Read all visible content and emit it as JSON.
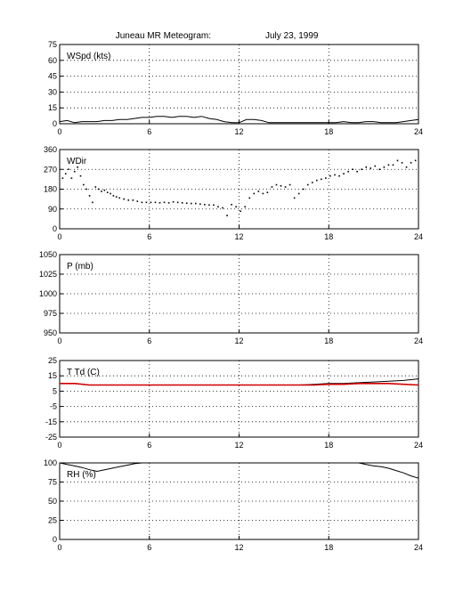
{
  "title": "Juneau MR Meteogram:",
  "date": "July 23, 1999",
  "chart_data": [
    {
      "type": "line",
      "label": "WSpd (kts)",
      "ylim": [
        0,
        75
      ],
      "yticks": [
        0,
        15,
        30,
        45,
        60,
        75
      ],
      "xlim": [
        0,
        24
      ],
      "xticks": [
        0,
        6,
        12,
        18,
        24
      ],
      "grid": true,
      "series": [
        {
          "color": "#000000",
          "x": [
            0,
            0.5,
            1,
            1.5,
            2,
            2.5,
            3,
            3.5,
            4,
            4.5,
            5,
            5.5,
            6,
            6.5,
            7,
            7.5,
            8,
            8.5,
            9,
            9.5,
            10,
            10.5,
            11,
            11.5,
            12,
            12.5,
            13,
            13.5,
            14,
            14.5,
            15,
            15.5,
            16,
            16.5,
            17,
            17.5,
            18,
            18.5,
            19,
            19.5,
            20,
            20.5,
            21,
            21.5,
            22,
            22.5,
            23,
            23.5,
            24
          ],
          "values": [
            2,
            3,
            1,
            2,
            2,
            2,
            3,
            3,
            4,
            4,
            5,
            6,
            6,
            7,
            7,
            6,
            7,
            7,
            6,
            7,
            5,
            4,
            2,
            1,
            1,
            4,
            4,
            3,
            1,
            1,
            1,
            1,
            1,
            1,
            1,
            1,
            1,
            1,
            2,
            1,
            1,
            2,
            2,
            1,
            1,
            1,
            2,
            3,
            4
          ]
        }
      ]
    },
    {
      "type": "scatter",
      "label": "WDir",
      "ylim": [
        0,
        360
      ],
      "yticks": [
        0,
        90,
        180,
        270,
        360
      ],
      "xlim": [
        0,
        24
      ],
      "xticks": [
        0,
        6,
        12,
        18,
        24
      ],
      "grid": true,
      "series": [
        {
          "color": "#000000",
          "x": [
            0.2,
            0.4,
            0.6,
            0.8,
            1.0,
            1.2,
            1.4,
            1.6,
            1.8,
            2.0,
            2.2,
            2.4,
            2.6,
            2.8,
            3.0,
            3.2,
            3.4,
            3.6,
            3.8,
            4.0,
            4.3,
            4.6,
            4.9,
            5.2,
            5.5,
            5.8,
            6.1,
            6.4,
            6.7,
            7.0,
            7.3,
            7.6,
            7.9,
            8.2,
            8.5,
            8.8,
            9.1,
            9.4,
            9.7,
            10.0,
            10.3,
            10.6,
            10.9,
            11.2,
            11.5,
            11.8,
            12.1,
            12.4,
            12.7,
            13.0,
            13.3,
            13.6,
            13.9,
            14.2,
            14.5,
            14.8,
            15.1,
            15.4,
            15.7,
            16.0,
            16.3,
            16.6,
            16.9,
            17.2,
            17.5,
            17.8,
            18.1,
            18.4,
            18.7,
            19.0,
            19.3,
            19.6,
            19.9,
            20.2,
            20.5,
            20.8,
            21.1,
            21.4,
            21.7,
            22.0,
            22.3,
            22.6,
            22.9,
            23.2,
            23.5,
            23.8
          ],
          "values": [
            230,
            250,
            270,
            230,
            260,
            280,
            240,
            200,
            180,
            150,
            120,
            190,
            180,
            170,
            175,
            165,
            160,
            150,
            145,
            140,
            135,
            130,
            130,
            125,
            120,
            120,
            120,
            120,
            118,
            120,
            118,
            122,
            120,
            118,
            116,
            115,
            115,
            112,
            110,
            108,
            108,
            100,
            95,
            60,
            110,
            100,
            80,
            100,
            140,
            160,
            170,
            160,
            165,
            190,
            200,
            195,
            190,
            200,
            140,
            160,
            180,
            200,
            210,
            220,
            225,
            230,
            240,
            245,
            240,
            250,
            260,
            270,
            260,
            270,
            280,
            275,
            285,
            270,
            280,
            290,
            290,
            310,
            300,
            280,
            300,
            310
          ]
        }
      ]
    },
    {
      "type": "line",
      "label": "P (mb)",
      "ylim": [
        950,
        1050
      ],
      "yticks": [
        950,
        975,
        1000,
        1025,
        1050
      ],
      "xlim": [
        0,
        24
      ],
      "xticks": [
        0,
        6,
        12,
        18,
        24
      ],
      "grid": true,
      "series": []
    },
    {
      "type": "line",
      "label": "T Td (C)",
      "ylim": [
        -25,
        25
      ],
      "yticks": [
        -25,
        -15,
        -5,
        5,
        15,
        25
      ],
      "xlim": [
        0,
        24
      ],
      "xticks": [
        0,
        6,
        12,
        18,
        24
      ],
      "grid": true,
      "series": [
        {
          "color": "#000000",
          "x": [
            0,
            1,
            2,
            3,
            4,
            5,
            6,
            7,
            8,
            9,
            10,
            11,
            12,
            13,
            14,
            15,
            16,
            17,
            18,
            19,
            20,
            21,
            22,
            23,
            24
          ],
          "values": [
            10,
            10,
            9,
            9,
            9,
            9,
            9,
            9,
            9,
            9,
            9,
            9,
            9,
            9,
            9,
            9,
            9,
            9.5,
            10,
            10,
            10.5,
            11,
            11.5,
            12,
            13
          ]
        },
        {
          "color": "#d00000",
          "x": [
            0,
            1,
            2,
            3,
            4,
            5,
            6,
            7,
            8,
            9,
            10,
            11,
            12,
            13,
            14,
            15,
            16,
            17,
            18,
            19,
            20,
            21,
            22,
            23,
            24
          ],
          "values": [
            10,
            10,
            9,
            9,
            9,
            9,
            9,
            9,
            9,
            9,
            9,
            9,
            9,
            9,
            9,
            9,
            9,
            9,
            9.5,
            9.5,
            10,
            10,
            10,
            9.5,
            9
          ]
        }
      ]
    },
    {
      "type": "line",
      "label": "RH (%)",
      "ylim": [
        0,
        100
      ],
      "yticks": [
        0,
        25,
        50,
        75,
        100
      ],
      "xlim": [
        0,
        24
      ],
      "xticks": [
        0,
        6,
        12,
        18,
        24
      ],
      "grid": true,
      "series": [
        {
          "color": "#000000",
          "x": [
            0,
            0.5,
            1,
            1.5,
            2,
            2.5,
            3,
            3.5,
            4,
            4.5,
            5,
            5.5,
            6
          ],
          "values": [
            100,
            98,
            96,
            94,
            91,
            89,
            91,
            93,
            95,
            97,
            99,
            100,
            100
          ]
        },
        {
          "color": "#000000",
          "x": [
            20,
            20.5,
            21,
            21.5,
            22,
            22.5,
            23,
            23.5,
            24
          ],
          "values": [
            100,
            98,
            96,
            95,
            93,
            90,
            87,
            83,
            80
          ]
        }
      ]
    }
  ]
}
